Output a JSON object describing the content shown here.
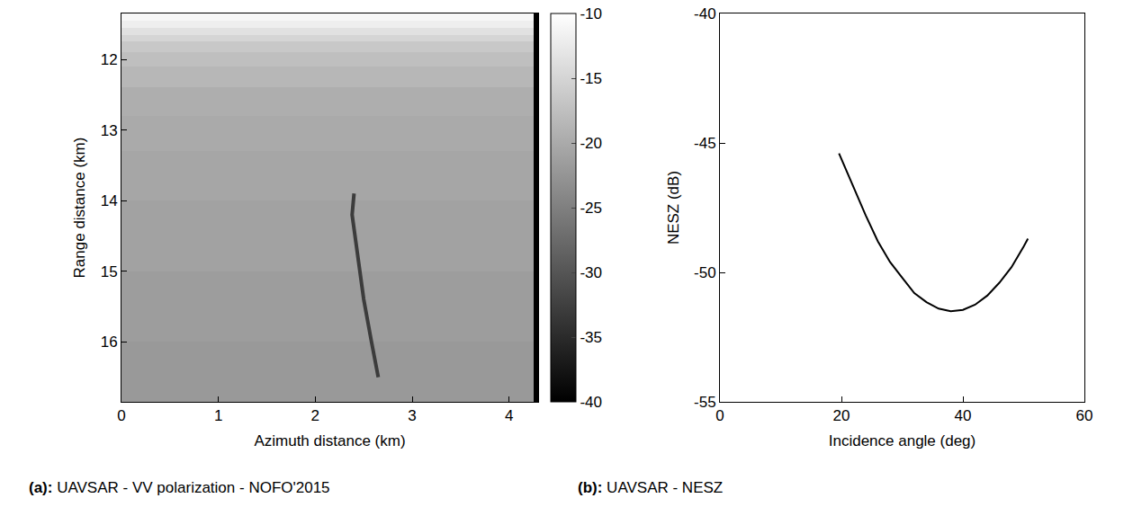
{
  "chart_data": [
    {
      "type": "heatmap",
      "caption": "(a): UAVSAR - VV polarization - NOFO'2015",
      "x_label": "Azimuth distance (km)",
      "y_label": "Range distance (km)",
      "x": [
        0,
        4.25,
        4.3
      ],
      "y": [
        11.35,
        11.45,
        11.55,
        11.65,
        11.75,
        11.9,
        12.1,
        12.4,
        12.8,
        13.3,
        14,
        15,
        16,
        16.85
      ],
      "z": [
        [
          -11,
          -40
        ],
        [
          -12,
          -40
        ],
        [
          -13.5,
          -40
        ],
        [
          -15,
          -40
        ],
        [
          -16.5,
          -40
        ],
        [
          -17.5,
          -40
        ],
        [
          -18.5,
          -40
        ],
        [
          -19.5,
          -40
        ],
        [
          -20,
          -40
        ],
        [
          -20.5,
          -40
        ],
        [
          -21,
          -40
        ],
        [
          -21.5,
          -40
        ],
        [
          -22,
          -40
        ]
      ],
      "colorbar_range": [
        -40,
        -10
      ],
      "colorbar_ticks": [
        -10,
        -15,
        -20,
        -25,
        -30,
        -35,
        -40
      ],
      "xlim": [
        0,
        4.3
      ],
      "ylim": [
        16.85,
        11.35
      ],
      "xticks": [
        0,
        1,
        2,
        3,
        4
      ],
      "yticks": [
        12,
        13,
        14,
        15,
        16
      ],
      "series": [
        {
          "type": "line",
          "color": "#3c3c3c",
          "x": [
            2.4,
            2.38,
            2.42,
            2.5,
            2.58,
            2.65
          ],
          "y": [
            13.9,
            14.2,
            14.6,
            15.4,
            16.0,
            16.5
          ]
        }
      ]
    },
    {
      "type": "line",
      "caption": "(b): UAVSAR - NESZ",
      "x_label": "Incidence angle (deg)",
      "y_label": "NESZ (dB)",
      "x": [
        19.6,
        22,
        24,
        26,
        28,
        30,
        32,
        34,
        36,
        38,
        40,
        42,
        44,
        46,
        48,
        50,
        50.7
      ],
      "values": [
        -45.4,
        -46.7,
        -47.8,
        -48.8,
        -49.6,
        -50.2,
        -50.8,
        -51.15,
        -51.4,
        -51.5,
        -51.45,
        -51.25,
        -50.9,
        -50.4,
        -49.8,
        -49.0,
        -48.7
      ],
      "color": "#000000",
      "xlim": [
        0,
        60
      ],
      "ylim": [
        -55,
        -40
      ],
      "xticks": [
        0,
        20,
        40,
        60
      ],
      "yticks": [
        -55,
        -50,
        -45,
        -40
      ]
    }
  ]
}
